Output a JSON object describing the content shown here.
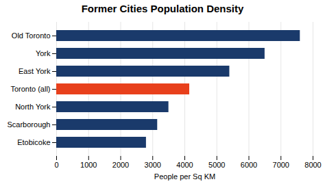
{
  "chart_data": {
    "type": "bar",
    "orientation": "horizontal",
    "title": "Former Cities Population Density",
    "xlabel": "People per Sq KM",
    "categories": [
      "Old Toronto",
      "York",
      "East York",
      "Toronto (all)",
      "North York",
      "Scarborough",
      "Etobicoke"
    ],
    "values": [
      7600,
      6500,
      5400,
      4150,
      3500,
      3150,
      2800
    ],
    "colors": [
      "#1a3a6b",
      "#1a3a6b",
      "#1a3a6b",
      "#e8401c",
      "#1a3a6b",
      "#1a3a6b",
      "#1a3a6b"
    ],
    "xlim": [
      0,
      8000
    ],
    "xticks": [
      0,
      1000,
      2000,
      3000,
      4000,
      5000,
      6000,
      7000,
      8000
    ],
    "grid": true
  }
}
